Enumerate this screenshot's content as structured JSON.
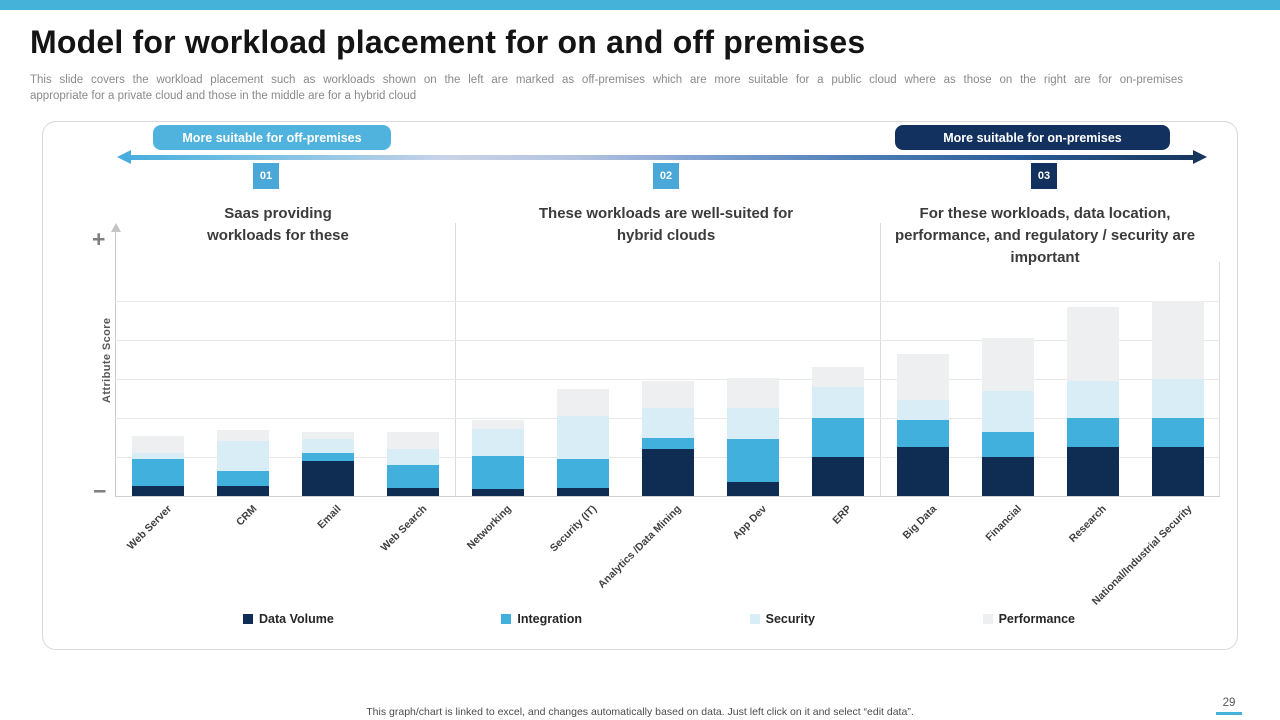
{
  "page": {
    "title": "Model for workload placement for on and off premises",
    "subtitle_line1": "This slide covers the workload placement such as workloads shown on the left are marked as off-premises which are more suitable for a public cloud where as those on the right are for on-premises",
    "subtitle_line2": "appropriate for a private cloud and those in the middle are for a hybrid cloud",
    "footer_note": "This graph/chart is linked to excel, and changes automatically based on data. Just left click on it and select “edit data”.",
    "page_number": "29",
    "accent_color": "#45b2d9"
  },
  "banner": {
    "off_pill": {
      "label": "More suitable for off-premises",
      "color": "#4fb3dd"
    },
    "on_pill": {
      "label": "More suitable for on-premises",
      "color": "#13315e"
    }
  },
  "sections": [
    {
      "badge": "01",
      "badge_color": "#49a8d8",
      "description": "Saas providing workloads for these"
    },
    {
      "badge": "02",
      "badge_color": "#49a8d8",
      "description": "These workloads are well-suited for hybrid clouds"
    },
    {
      "badge": "03",
      "badge_color": "#12315e",
      "description": "For these workloads, data location, performance, and regulatory / security are important"
    }
  ],
  "chart_data": {
    "type": "bar",
    "stacked": true,
    "title": "",
    "xlabel": "",
    "ylabel": "Attribute Score",
    "axis_plus": "+",
    "axis_minus": "−",
    "ylim": [
      0,
      5
    ],
    "gridline_interval": 1,
    "grid": true,
    "legend_position": "bottom",
    "categories": [
      "Web Server",
      "CRM",
      "Email",
      "Web Search",
      "Networking",
      "Security (IT)",
      "Analytics /Data Mining",
      "App Dev",
      "ERP",
      "Big Data",
      "Financial",
      "Research",
      "National/Industrial Security"
    ],
    "series": [
      {
        "name": "Data Volume",
        "color": "#0f2d52",
        "values": [
          0.25,
          0.25,
          0.9,
          0.2,
          0.17,
          0.2,
          1.2,
          0.35,
          1.0,
          1.25,
          1.0,
          1.25,
          1.25
        ]
      },
      {
        "name": "Integration",
        "color": "#41b0dd",
        "values": [
          0.7,
          0.4,
          0.2,
          0.6,
          0.85,
          0.75,
          0.3,
          1.1,
          1.0,
          0.7,
          0.65,
          0.75,
          0.75
        ]
      },
      {
        "name": "Security",
        "color": "#d9edf7",
        "values": [
          0.15,
          0.75,
          0.35,
          0.4,
          0.7,
          1.1,
          0.75,
          0.8,
          0.8,
          0.5,
          1.05,
          0.95,
          1.0
        ]
      },
      {
        "name": "Performance",
        "color": "#edeff0",
        "values": [
          0.45,
          0.3,
          0.2,
          0.45,
          0.22,
          0.7,
          0.7,
          0.78,
          0.5,
          1.2,
          1.35,
          1.9,
          2.0
        ]
      }
    ]
  }
}
